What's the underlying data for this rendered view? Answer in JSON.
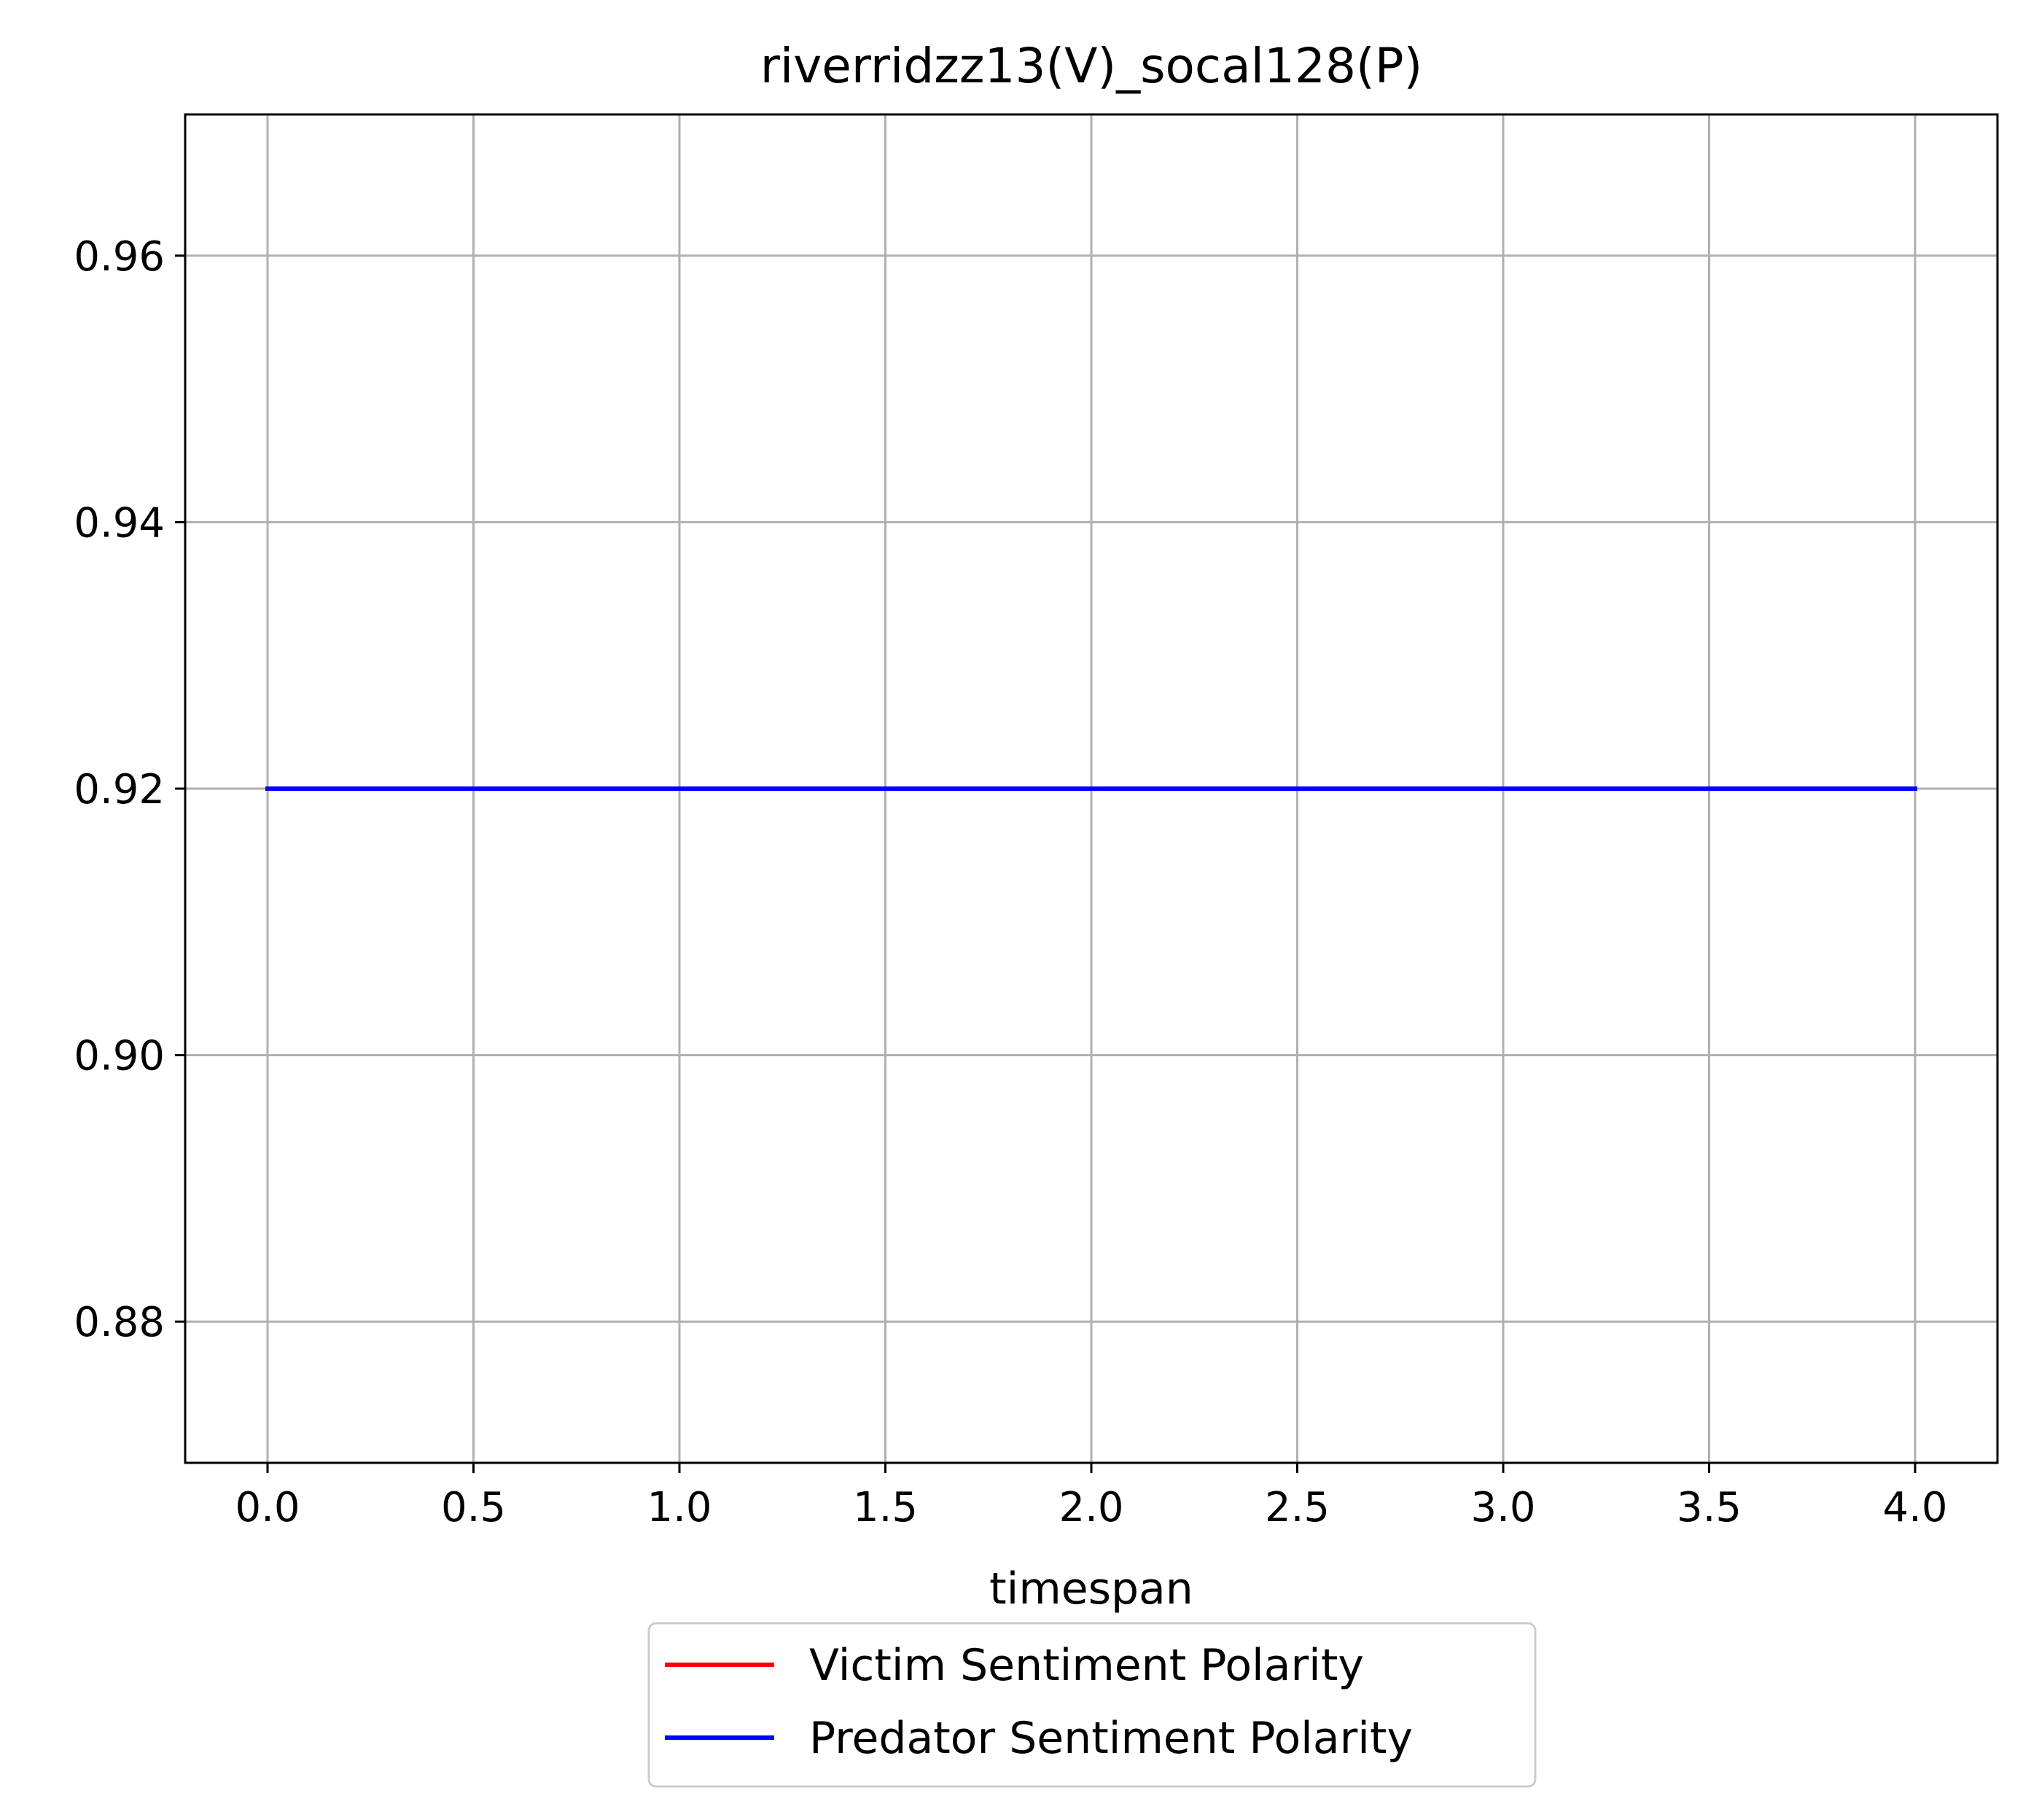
{
  "chart_data": {
    "type": "line",
    "title": "riverridzz13(V)_socal128(P)",
    "xlabel": "timespan",
    "ylabel": "",
    "xlim": [
      -0.2,
      4.2
    ],
    "ylim": [
      0.8694,
      0.9706
    ],
    "xticks": [
      0.0,
      0.5,
      1.0,
      1.5,
      2.0,
      2.5,
      3.0,
      3.5,
      4.0
    ],
    "xtick_labels": [
      "0.0",
      "0.5",
      "1.0",
      "1.5",
      "2.0",
      "2.5",
      "3.0",
      "3.5",
      "4.0"
    ],
    "yticks": [
      0.88,
      0.9,
      0.92,
      0.94,
      0.96
    ],
    "ytick_labels": [
      "0.88",
      "0.90",
      "0.92",
      "0.94",
      "0.96"
    ],
    "grid": true,
    "legend_position": "bottom-center, below plot",
    "series": [
      {
        "name": "Victim Sentiment Polarity",
        "color": "#ff0000",
        "x": [
          0,
          1,
          2,
          3,
          4
        ],
        "y": [
          0.92,
          0.92,
          0.92,
          0.92,
          0.92
        ]
      },
      {
        "name": "Predator Sentiment Polarity",
        "color": "#0000ff",
        "x": [
          0,
          1,
          2,
          3,
          4
        ],
        "y": [
          0.92,
          0.92,
          0.92,
          0.92,
          0.92
        ]
      }
    ]
  }
}
